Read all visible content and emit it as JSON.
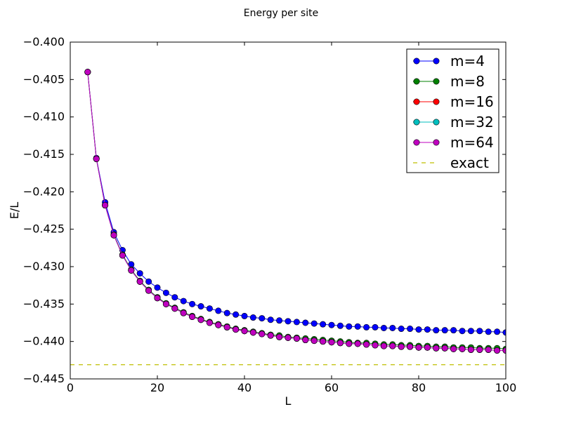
{
  "chart_data": {
    "type": "line",
    "title": "Energy per site",
    "xlabel": "L",
    "ylabel": "E/L",
    "xlim": [
      0,
      100
    ],
    "ylim": [
      -0.445,
      -0.4
    ],
    "xticks": [
      0,
      20,
      40,
      60,
      80,
      100
    ],
    "xtick_labels": [
      "0",
      "20",
      "40",
      "60",
      "80",
      "100"
    ],
    "yticks": [
      -0.4,
      -0.405,
      -0.41,
      -0.415,
      -0.42,
      -0.425,
      -0.43,
      -0.435,
      -0.44,
      -0.445
    ],
    "ytick_labels": [
      "−0.400",
      "−0.405",
      "−0.410",
      "−0.415",
      "−0.420",
      "−0.425",
      "−0.430",
      "−0.435",
      "−0.440",
      "−0.445"
    ],
    "grid": false,
    "legend_position": "top-right",
    "x": [
      4,
      6,
      8,
      10,
      12,
      14,
      16,
      18,
      20,
      22,
      24,
      26,
      28,
      30,
      32,
      34,
      36,
      38,
      40,
      42,
      44,
      46,
      48,
      50,
      52,
      54,
      56,
      58,
      60,
      62,
      64,
      66,
      68,
      70,
      72,
      74,
      76,
      78,
      80,
      82,
      84,
      86,
      88,
      90,
      92,
      94,
      96,
      98,
      100
    ],
    "series": [
      {
        "name": "m=4",
        "color": "#0000ff",
        "marker": "circle",
        "linestyle": "solid",
        "values": [
          -0.404,
          -0.4155,
          -0.4214,
          -0.4254,
          -0.4278,
          -0.4297,
          -0.4309,
          -0.432,
          -0.4328,
          -0.4335,
          -0.4341,
          -0.4346,
          -0.435,
          -0.4353,
          -0.4356,
          -0.4359,
          -0.4362,
          -0.4364,
          -0.4366,
          -0.4368,
          -0.4369,
          -0.4371,
          -0.4372,
          -0.4373,
          -0.4374,
          -0.4375,
          -0.4376,
          -0.4377,
          -0.4378,
          -0.4379,
          -0.438,
          -0.438,
          -0.4381,
          -0.4381,
          -0.4382,
          -0.4382,
          -0.4383,
          -0.4383,
          -0.4384,
          -0.4384,
          -0.4385,
          -0.4385,
          -0.4385,
          -0.4386,
          -0.4386,
          -0.4386,
          -0.4387,
          -0.4387,
          -0.4388
        ]
      },
      {
        "name": "m=8",
        "color": "#008000",
        "marker": "circle",
        "linestyle": "solid",
        "values": [
          -0.404,
          -0.4156,
          -0.4218,
          -0.4257,
          -0.4284,
          -0.4304,
          -0.4319,
          -0.4331,
          -0.4341,
          -0.4349,
          -0.4355,
          -0.4361,
          -0.4366,
          -0.437,
          -0.4374,
          -0.4377,
          -0.438,
          -0.4383,
          -0.4385,
          -0.4387,
          -0.4389,
          -0.4391,
          -0.4392,
          -0.4394,
          -0.4395,
          -0.4396,
          -0.4397,
          -0.4398,
          -0.4399,
          -0.44,
          -0.4401,
          -0.4402,
          -0.4402,
          -0.4403,
          -0.4404,
          -0.4404,
          -0.4405,
          -0.4405,
          -0.4406,
          -0.4406,
          -0.4407,
          -0.4407,
          -0.4408,
          -0.4408,
          -0.4408,
          -0.4409,
          -0.4409,
          -0.4409,
          -0.441
        ]
      },
      {
        "name": "m=16",
        "color": "#ff0000",
        "marker": "circle",
        "linestyle": "solid",
        "values": [
          -0.404,
          -0.4156,
          -0.4218,
          -0.4258,
          -0.4285,
          -0.4305,
          -0.432,
          -0.4332,
          -0.4342,
          -0.435,
          -0.4356,
          -0.4362,
          -0.4367,
          -0.4371,
          -0.4375,
          -0.4378,
          -0.4381,
          -0.4384,
          -0.4386,
          -0.4388,
          -0.439,
          -0.4392,
          -0.4394,
          -0.4395,
          -0.4396,
          -0.4398,
          -0.4399,
          -0.44,
          -0.4401,
          -0.4402,
          -0.4403,
          -0.4403,
          -0.4404,
          -0.4405,
          -0.4406,
          -0.4406,
          -0.4407,
          -0.4407,
          -0.4408,
          -0.4408,
          -0.4409,
          -0.4409,
          -0.441,
          -0.441,
          -0.4411,
          -0.4411,
          -0.4411,
          -0.4412,
          -0.4412
        ]
      },
      {
        "name": "m=32",
        "color": "#00bfbf",
        "marker": "circle",
        "linestyle": "solid",
        "values": [
          -0.404,
          -0.4156,
          -0.4218,
          -0.4258,
          -0.4285,
          -0.4305,
          -0.432,
          -0.4332,
          -0.4342,
          -0.435,
          -0.4356,
          -0.4362,
          -0.4367,
          -0.4371,
          -0.4375,
          -0.4378,
          -0.4381,
          -0.4384,
          -0.4386,
          -0.4388,
          -0.439,
          -0.4392,
          -0.4394,
          -0.4395,
          -0.4396,
          -0.4398,
          -0.4399,
          -0.44,
          -0.4401,
          -0.4402,
          -0.4403,
          -0.4403,
          -0.4404,
          -0.4405,
          -0.4406,
          -0.4406,
          -0.4407,
          -0.4407,
          -0.4408,
          -0.4408,
          -0.4409,
          -0.4409,
          -0.441,
          -0.441,
          -0.4411,
          -0.4411,
          -0.4411,
          -0.4412,
          -0.4412
        ]
      },
      {
        "name": "m=64",
        "color": "#bf00bf",
        "marker": "circle",
        "linestyle": "solid",
        "values": [
          -0.404,
          -0.4156,
          -0.4218,
          -0.4258,
          -0.4285,
          -0.4305,
          -0.432,
          -0.4332,
          -0.4342,
          -0.435,
          -0.4356,
          -0.4362,
          -0.4367,
          -0.4371,
          -0.4375,
          -0.4378,
          -0.4381,
          -0.4384,
          -0.4386,
          -0.4388,
          -0.439,
          -0.4392,
          -0.4394,
          -0.4395,
          -0.4396,
          -0.4398,
          -0.4399,
          -0.44,
          -0.4401,
          -0.4402,
          -0.4403,
          -0.4403,
          -0.4404,
          -0.4405,
          -0.4406,
          -0.4406,
          -0.4407,
          -0.4407,
          -0.4408,
          -0.4408,
          -0.4409,
          -0.4409,
          -0.441,
          -0.441,
          -0.4411,
          -0.4411,
          -0.4411,
          -0.4412,
          -0.4412
        ]
      }
    ],
    "reference_line": {
      "name": "exact",
      "color": "#bfbf00",
      "linestyle": "dashed",
      "value": -0.4431,
      "x_range": [
        0,
        100
      ]
    }
  }
}
